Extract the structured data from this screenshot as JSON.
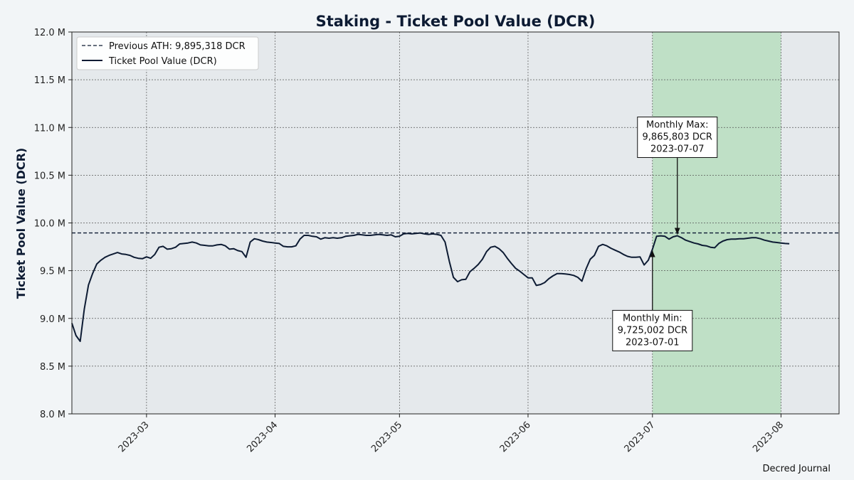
{
  "chart_data": {
    "type": "line",
    "title": "Staking - Ticket Pool Value (DCR)",
    "ylabel": "Ticket Pool Value (DCR)",
    "xlabel": "",
    "x_range": [
      "2023-02-11",
      "2023-08-15"
    ],
    "ylim": [
      8000000,
      12000000
    ],
    "yticks": [
      8000000,
      8500000,
      9000000,
      9500000,
      10000000,
      10500000,
      11000000,
      11500000,
      12000000
    ],
    "ytick_labels": [
      "8.0 M",
      "8.5 M",
      "9.0 M",
      "9.5 M",
      "10.0 M",
      "10.5 M",
      "11.0 M",
      "11.5 M",
      "12.0 M"
    ],
    "xticks": [
      "2023-03-01",
      "2023-04-01",
      "2023-05-01",
      "2023-06-01",
      "2023-07-01",
      "2023-08-01"
    ],
    "xtick_labels": [
      "2023-03",
      "2023-04",
      "2023-05",
      "2023-06",
      "2023-07",
      "2023-08"
    ],
    "grid": true,
    "legend_position": "top-left",
    "highlight_range": {
      "start": "2023-07-01",
      "end": "2023-08-01",
      "color": "#bfe0c6"
    },
    "reference_line": {
      "name": "Previous ATH: 9,895,318 DCR",
      "value": 9895318,
      "style": "dashed",
      "color": "#0d1b33"
    },
    "series": [
      {
        "name": "Ticket Pool Value (DCR)",
        "color": "#0d1b33",
        "points": [
          [
            "2023-02-11",
            8950000
          ],
          [
            "2023-02-12",
            8820000
          ],
          [
            "2023-02-13",
            8760000
          ],
          [
            "2023-02-14",
            9100000
          ],
          [
            "2023-02-15",
            9350000
          ],
          [
            "2023-02-16",
            9470000
          ],
          [
            "2023-02-17",
            9570000
          ],
          [
            "2023-02-18",
            9610000
          ],
          [
            "2023-02-19",
            9640000
          ],
          [
            "2023-02-20",
            9660000
          ],
          [
            "2023-02-21",
            9675000
          ],
          [
            "2023-02-22",
            9690000
          ],
          [
            "2023-02-23",
            9675000
          ],
          [
            "2023-02-24",
            9670000
          ],
          [
            "2023-02-25",
            9660000
          ],
          [
            "2023-02-26",
            9640000
          ],
          [
            "2023-02-27",
            9630000
          ],
          [
            "2023-02-28",
            9625000
          ],
          [
            "2023-03-01",
            9645000
          ],
          [
            "2023-03-02",
            9630000
          ],
          [
            "2023-03-03",
            9670000
          ],
          [
            "2023-03-04",
            9745000
          ],
          [
            "2023-03-05",
            9755000
          ],
          [
            "2023-03-06",
            9725000
          ],
          [
            "2023-03-07",
            9730000
          ],
          [
            "2023-03-08",
            9745000
          ],
          [
            "2023-03-09",
            9780000
          ],
          [
            "2023-03-10",
            9785000
          ],
          [
            "2023-03-11",
            9790000
          ],
          [
            "2023-03-12",
            9800000
          ],
          [
            "2023-03-13",
            9790000
          ],
          [
            "2023-03-14",
            9770000
          ],
          [
            "2023-03-15",
            9765000
          ],
          [
            "2023-03-16",
            9760000
          ],
          [
            "2023-03-17",
            9760000
          ],
          [
            "2023-03-18",
            9770000
          ],
          [
            "2023-03-19",
            9775000
          ],
          [
            "2023-03-20",
            9760000
          ],
          [
            "2023-03-21",
            9725000
          ],
          [
            "2023-03-22",
            9730000
          ],
          [
            "2023-03-23",
            9710000
          ],
          [
            "2023-03-24",
            9700000
          ],
          [
            "2023-03-25",
            9640000
          ],
          [
            "2023-03-26",
            9800000
          ],
          [
            "2023-03-27",
            9835000
          ],
          [
            "2023-03-28",
            9825000
          ],
          [
            "2023-03-29",
            9810000
          ],
          [
            "2023-03-30",
            9800000
          ],
          [
            "2023-03-31",
            9795000
          ],
          [
            "2023-04-01",
            9790000
          ],
          [
            "2023-04-02",
            9785000
          ],
          [
            "2023-04-03",
            9755000
          ],
          [
            "2023-04-04",
            9750000
          ],
          [
            "2023-04-05",
            9750000
          ],
          [
            "2023-04-06",
            9760000
          ],
          [
            "2023-04-07",
            9830000
          ],
          [
            "2023-04-08",
            9870000
          ],
          [
            "2023-04-09",
            9870000
          ],
          [
            "2023-04-10",
            9860000
          ],
          [
            "2023-04-11",
            9855000
          ],
          [
            "2023-04-12",
            9830000
          ],
          [
            "2023-04-13",
            9845000
          ],
          [
            "2023-04-14",
            9840000
          ],
          [
            "2023-04-15",
            9845000
          ],
          [
            "2023-04-16",
            9840000
          ],
          [
            "2023-04-17",
            9845000
          ],
          [
            "2023-04-18",
            9860000
          ],
          [
            "2023-04-19",
            9865000
          ],
          [
            "2023-04-20",
            9870000
          ],
          [
            "2023-04-21",
            9880000
          ],
          [
            "2023-04-22",
            9875000
          ],
          [
            "2023-04-23",
            9870000
          ],
          [
            "2023-04-24",
            9870000
          ],
          [
            "2023-04-25",
            9875000
          ],
          [
            "2023-04-26",
            9880000
          ],
          [
            "2023-04-27",
            9875000
          ],
          [
            "2023-04-28",
            9870000
          ],
          [
            "2023-04-29",
            9875000
          ],
          [
            "2023-04-30",
            9855000
          ],
          [
            "2023-05-01",
            9860000
          ],
          [
            "2023-05-02",
            9885000
          ],
          [
            "2023-05-03",
            9890000
          ],
          [
            "2023-05-04",
            9885000
          ],
          [
            "2023-05-05",
            9890000
          ],
          [
            "2023-05-06",
            9895000
          ],
          [
            "2023-05-07",
            9885000
          ],
          [
            "2023-05-08",
            9880000
          ],
          [
            "2023-05-09",
            9885000
          ],
          [
            "2023-05-10",
            9880000
          ],
          [
            "2023-05-11",
            9870000
          ],
          [
            "2023-05-12",
            9800000
          ],
          [
            "2023-05-13",
            9600000
          ],
          [
            "2023-05-14",
            9430000
          ],
          [
            "2023-05-15",
            9385000
          ],
          [
            "2023-05-16",
            9405000
          ],
          [
            "2023-05-17",
            9410000
          ],
          [
            "2023-05-18",
            9490000
          ],
          [
            "2023-05-19",
            9525000
          ],
          [
            "2023-05-20",
            9565000
          ],
          [
            "2023-05-21",
            9620000
          ],
          [
            "2023-05-22",
            9700000
          ],
          [
            "2023-05-23",
            9745000
          ],
          [
            "2023-05-24",
            9755000
          ],
          [
            "2023-05-25",
            9730000
          ],
          [
            "2023-05-26",
            9690000
          ],
          [
            "2023-05-27",
            9630000
          ],
          [
            "2023-05-28",
            9575000
          ],
          [
            "2023-05-29",
            9525000
          ],
          [
            "2023-05-30",
            9495000
          ],
          [
            "2023-05-31",
            9460000
          ],
          [
            "2023-06-01",
            9425000
          ],
          [
            "2023-06-02",
            9425000
          ],
          [
            "2023-06-03",
            9345000
          ],
          [
            "2023-06-04",
            9355000
          ],
          [
            "2023-06-05",
            9375000
          ],
          [
            "2023-06-06",
            9415000
          ],
          [
            "2023-06-07",
            9445000
          ],
          [
            "2023-06-08",
            9470000
          ],
          [
            "2023-06-09",
            9470000
          ],
          [
            "2023-06-10",
            9465000
          ],
          [
            "2023-06-11",
            9460000
          ],
          [
            "2023-06-12",
            9450000
          ],
          [
            "2023-06-13",
            9430000
          ],
          [
            "2023-06-14",
            9390000
          ],
          [
            "2023-06-15",
            9520000
          ],
          [
            "2023-06-16",
            9620000
          ],
          [
            "2023-06-17",
            9660000
          ],
          [
            "2023-06-18",
            9755000
          ],
          [
            "2023-06-19",
            9775000
          ],
          [
            "2023-06-20",
            9760000
          ],
          [
            "2023-06-21",
            9735000
          ],
          [
            "2023-06-22",
            9715000
          ],
          [
            "2023-06-23",
            9695000
          ],
          [
            "2023-06-24",
            9670000
          ],
          [
            "2023-06-25",
            9650000
          ],
          [
            "2023-06-26",
            9640000
          ],
          [
            "2023-06-27",
            9640000
          ],
          [
            "2023-06-28",
            9645000
          ],
          [
            "2023-06-29",
            9560000
          ],
          [
            "2023-06-30",
            9610000
          ],
          [
            "2023-07-01",
            9725002
          ],
          [
            "2023-07-02",
            9860000
          ],
          [
            "2023-07-03",
            9865000
          ],
          [
            "2023-07-04",
            9860000
          ],
          [
            "2023-07-05",
            9830000
          ],
          [
            "2023-07-06",
            9855000
          ],
          [
            "2023-07-07",
            9865803
          ],
          [
            "2023-07-08",
            9845000
          ],
          [
            "2023-07-09",
            9820000
          ],
          [
            "2023-07-10",
            9805000
          ],
          [
            "2023-07-11",
            9790000
          ],
          [
            "2023-07-12",
            9780000
          ],
          [
            "2023-07-13",
            9765000
          ],
          [
            "2023-07-14",
            9760000
          ],
          [
            "2023-07-15",
            9745000
          ],
          [
            "2023-07-16",
            9740000
          ],
          [
            "2023-07-17",
            9785000
          ],
          [
            "2023-07-18",
            9810000
          ],
          [
            "2023-07-19",
            9825000
          ],
          [
            "2023-07-20",
            9830000
          ],
          [
            "2023-07-21",
            9830000
          ],
          [
            "2023-07-22",
            9835000
          ],
          [
            "2023-07-23",
            9835000
          ],
          [
            "2023-07-24",
            9840000
          ],
          [
            "2023-07-25",
            9845000
          ],
          [
            "2023-07-26",
            9845000
          ],
          [
            "2023-07-27",
            9835000
          ],
          [
            "2023-07-28",
            9820000
          ],
          [
            "2023-07-29",
            9810000
          ],
          [
            "2023-07-30",
            9800000
          ],
          [
            "2023-07-31",
            9795000
          ],
          [
            "2023-08-01",
            9790000
          ],
          [
            "2023-08-02",
            9785000
          ],
          [
            "2023-08-03",
            9782000
          ]
        ]
      }
    ],
    "annotations": [
      {
        "lines": [
          "Monthly Max:",
          "9,865,803 DCR",
          "2023-07-07"
        ],
        "x": "2023-07-07",
        "y": 9865803,
        "placement": "above"
      },
      {
        "lines": [
          "Monthly Min:",
          "9,725,002 DCR",
          "2023-07-01"
        ],
        "x": "2023-07-01",
        "y": 9725002,
        "placement": "below"
      }
    ]
  },
  "footer": "Decred Journal"
}
